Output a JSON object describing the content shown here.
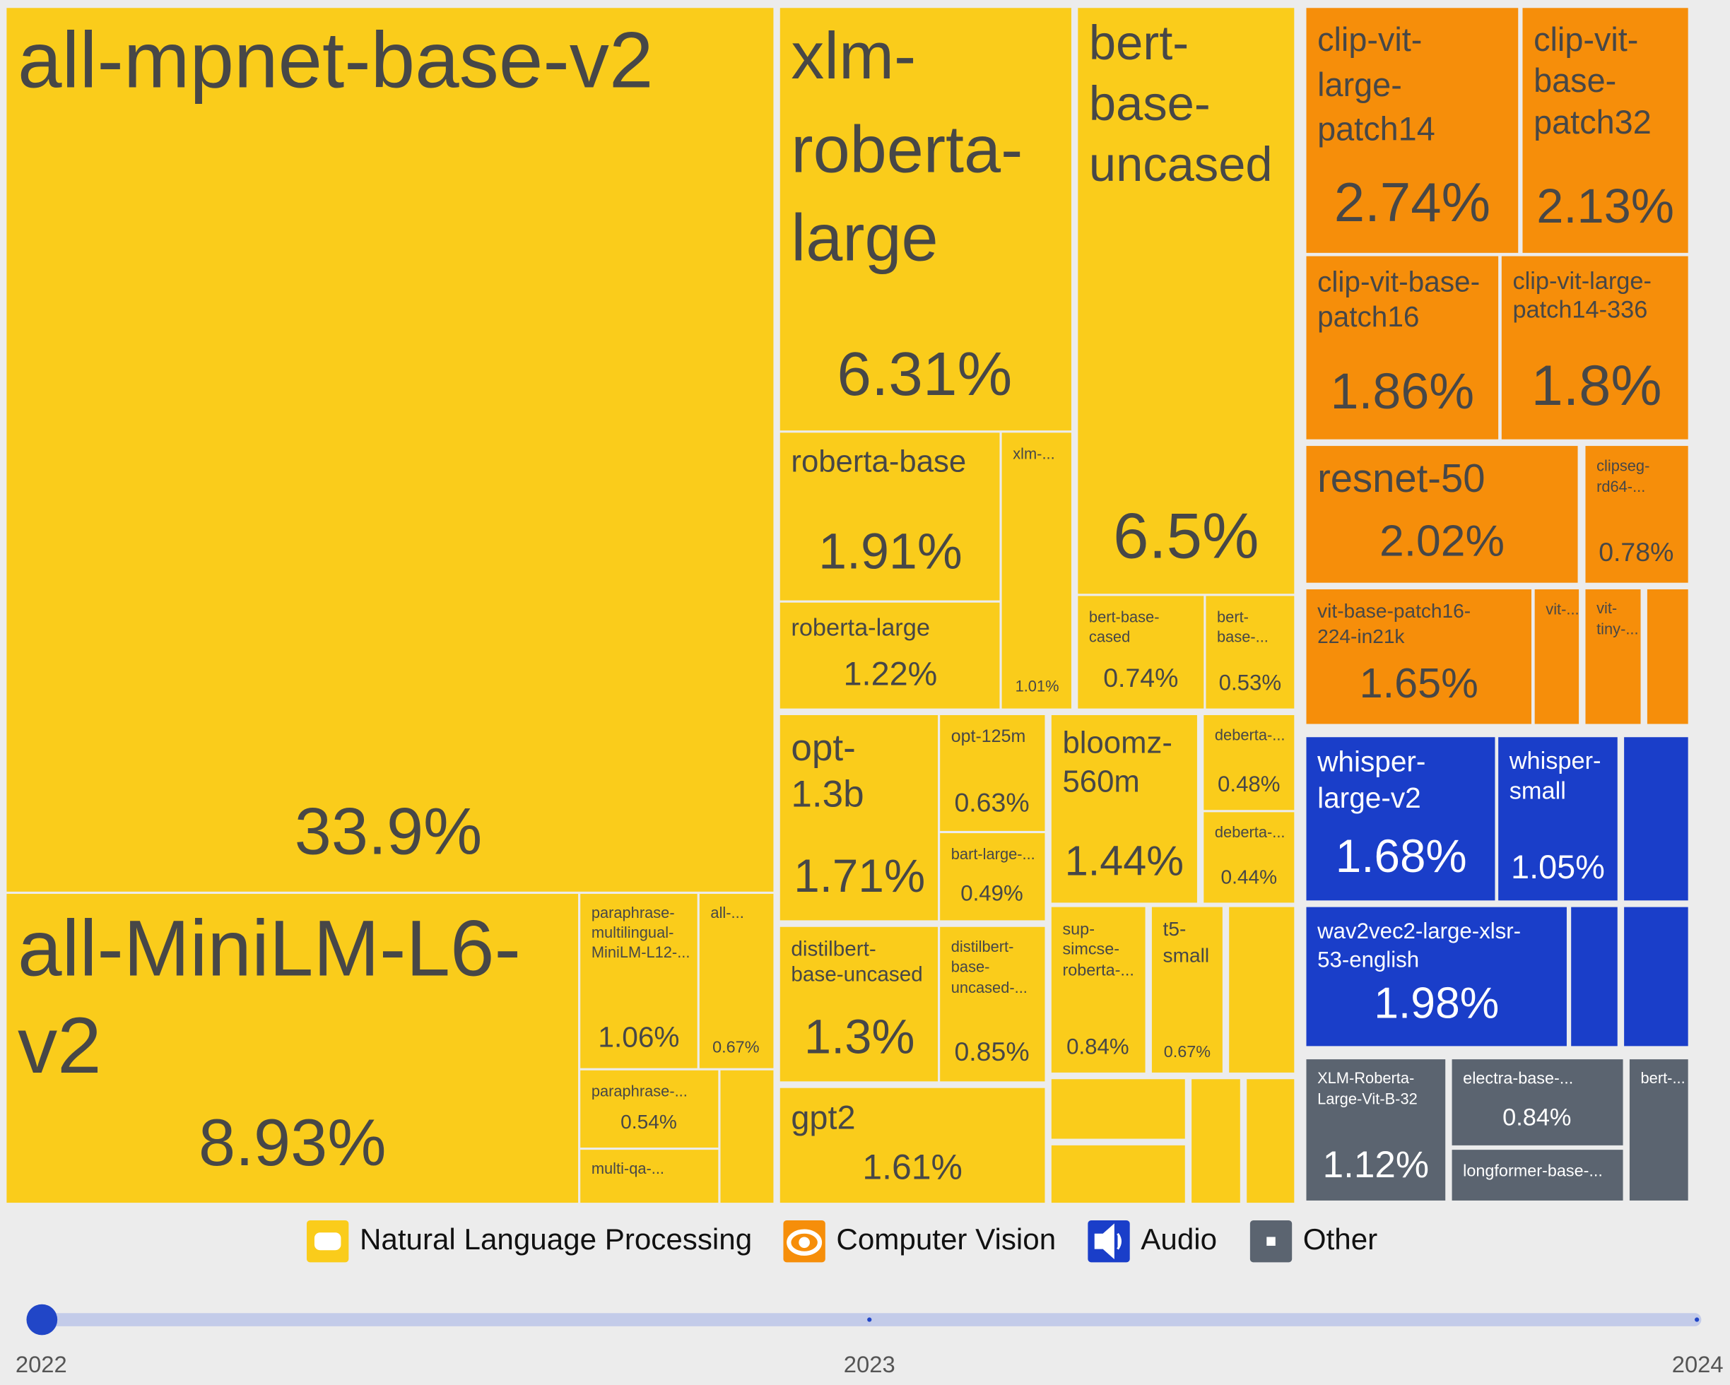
{
  "treemap": {
    "tiles": [
      {
        "label": [
          "all-mpnet-base-v2"
        ],
        "value": "33.9%"
      },
      {
        "label": [
          "all-MiniLM-L6-",
          "v2"
        ],
        "value": "8.93%"
      },
      {
        "label": [
          "paraphrase-",
          "multilingual-",
          "MiniLM-L12-..."
        ],
        "value": "1.06%"
      },
      {
        "label": [
          "all-..."
        ],
        "value": "0.67%"
      },
      {
        "label": [
          "paraphrase-..."
        ],
        "value": "0.54%"
      },
      {
        "label": [
          "multi-qa-..."
        ]
      },
      {
        "label": [
          "xlm-",
          "roberta-",
          "large"
        ],
        "value": "6.31%"
      },
      {
        "label": [
          "roberta-base"
        ],
        "value": "1.91%"
      },
      {
        "label": [
          "roberta-large"
        ],
        "value": "1.22%"
      },
      {
        "label": [
          "xlm-..."
        ],
        "value": "1.01%"
      },
      {
        "label": [
          "bert-",
          "base-",
          "uncased"
        ],
        "value": "6.5%"
      },
      {
        "label": [
          "bert-base-",
          "cased"
        ],
        "value": "0.74%"
      },
      {
        "label": [
          "bert-",
          "base-..."
        ],
        "value": "0.53%"
      },
      {
        "label": [
          "opt-",
          "1.3b"
        ],
        "value": "1.71%"
      },
      {
        "label": [
          "opt-125m"
        ],
        "value": "0.63%"
      },
      {
        "label": [
          "bart-large-..."
        ],
        "value": "0.49%"
      },
      {
        "label": [
          "distilbert-",
          "base-uncased"
        ],
        "value": "1.3%"
      },
      {
        "label": [
          "distilbert-",
          "base-",
          "uncased-..."
        ],
        "value": "0.85%"
      },
      {
        "label": [
          "gpt2"
        ],
        "value": "1.61%"
      },
      {
        "label": [
          "bloomz-",
          "560m"
        ],
        "value": "1.44%"
      },
      {
        "label": [
          "deberta-..."
        ],
        "value": "0.48%"
      },
      {
        "label": [
          "deberta-..."
        ],
        "value": "0.44%"
      },
      {
        "label": [
          "sup-",
          "simcse-",
          "roberta-..."
        ],
        "value": "0.84%"
      },
      {
        "label": [
          "t5-",
          "small"
        ],
        "value": "0.67%"
      },
      {
        "label": [
          "clip-vit-",
          "large-",
          "patch14"
        ],
        "value": "2.74%"
      },
      {
        "label": [
          "clip-vit-",
          "base-",
          "patch32"
        ],
        "value": "2.13%"
      },
      {
        "label": [
          "clip-vit-base-",
          "patch16"
        ],
        "value": "1.86%"
      },
      {
        "label": [
          "clip-vit-large-",
          "patch14-336"
        ],
        "value": "1.8%"
      },
      {
        "label": [
          "resnet-50"
        ],
        "value": "2.02%"
      },
      {
        "label": [
          "clipseg-",
          "rd64-..."
        ],
        "value": "0.78%"
      },
      {
        "label": [
          "vit-base-patch16-",
          "224-in21k"
        ],
        "value": "1.65%"
      },
      {
        "label": [
          "vit-..."
        ]
      },
      {
        "label": [
          "vit-",
          "tiny-..."
        ]
      },
      {
        "label": [
          "whisper-",
          "large-v2"
        ],
        "value": "1.68%"
      },
      {
        "label": [
          "whisper-",
          "small"
        ],
        "value": "1.05%"
      },
      {
        "label": [
          "wav2vec2-large-xlsr-",
          "53-english"
        ],
        "value": "1.98%"
      },
      {
        "label": [
          "XLM-Roberta-",
          "Large-Vit-B-32"
        ],
        "value": "1.12%"
      },
      {
        "label": [
          "electra-base-..."
        ],
        "value": "0.84%"
      },
      {
        "label": [
          "longformer-base-..."
        ]
      },
      {
        "label": [
          "bert-..."
        ]
      }
    ]
  },
  "legend": [
    "Natural Language Processing",
    "Computer Vision",
    "Audio",
    "Other"
  ],
  "timeline": {
    "labels": [
      "2022",
      "2023",
      "2024"
    ]
  }
}
